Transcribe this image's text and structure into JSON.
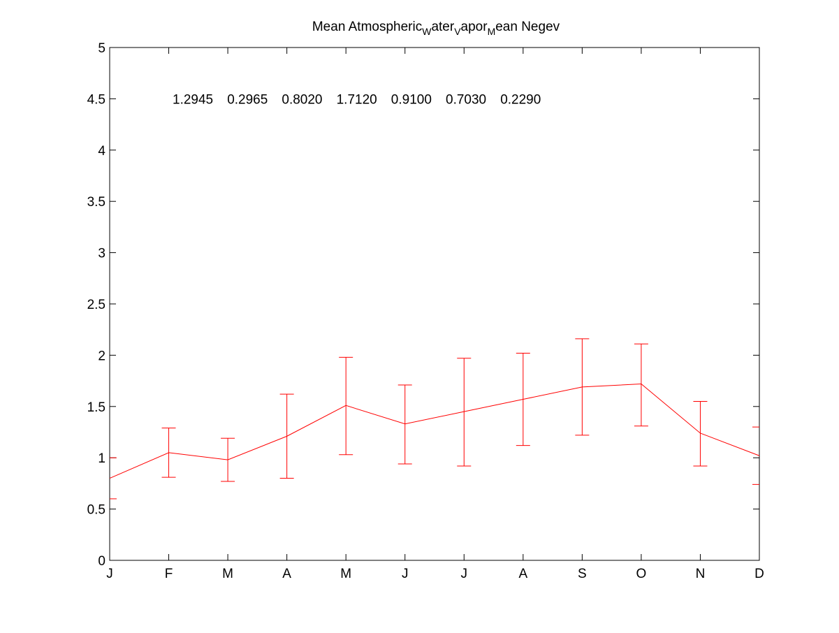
{
  "chart_data": {
    "type": "line",
    "title_parts": {
      "t1": "Mean Atmospheric",
      "s1": "W",
      "t2": "ater",
      "s2": "V",
      "t3": "apor",
      "s3": "M",
      "t4": "ean Negev"
    },
    "xlabel": "",
    "ylabel": "",
    "categories": [
      "J",
      "F",
      "M",
      "A",
      "M",
      "J",
      "J",
      "A",
      "S",
      "O",
      "N",
      "D"
    ],
    "yticks": [
      "0",
      "0.5",
      "1",
      "1.5",
      "2",
      "2.5",
      "3",
      "3.5",
      "4",
      "4.5",
      "5"
    ],
    "ylim": [
      0,
      5
    ],
    "grid": false,
    "legend": "none",
    "annotations": [
      "1.2945",
      "0.2965",
      "0.8020",
      "1.7120",
      "0.9100",
      "0.7030",
      "0.2290"
    ],
    "annotation_y": 4.5,
    "series": [
      {
        "values": [
          0.8,
          1.05,
          0.98,
          1.21,
          1.51,
          1.33,
          1.45,
          1.57,
          1.69,
          1.72,
          1.24,
          1.02
        ],
        "error_low": [
          0.6,
          0.81,
          0.77,
          0.8,
          1.03,
          0.94,
          0.92,
          1.12,
          1.22,
          1.31,
          0.92,
          0.74
        ],
        "error_high": [
          1.0,
          1.29,
          1.19,
          1.62,
          1.98,
          1.71,
          1.97,
          2.02,
          2.16,
          2.11,
          1.55,
          1.3
        ],
        "color": "#ff0000"
      }
    ]
  }
}
